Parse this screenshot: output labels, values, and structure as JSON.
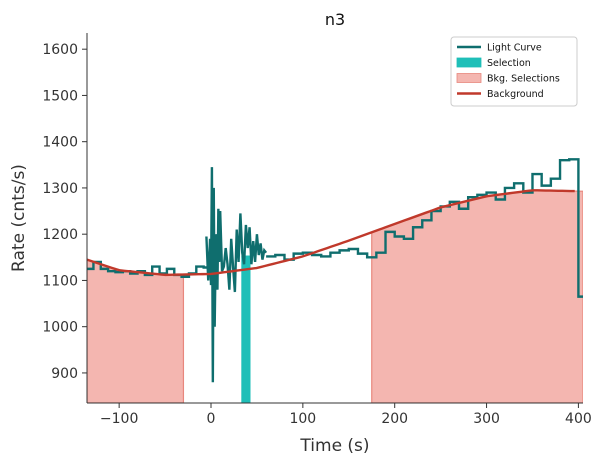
{
  "chart_data": {
    "type": "line",
    "title": "n3",
    "xlabel": "Time (s)",
    "ylabel": "Rate (cnts/s)",
    "xlim": [
      -135,
      405
    ],
    "ylim": [
      835,
      1635
    ],
    "xticks": [
      -100,
      0,
      100,
      200,
      300,
      400
    ],
    "yticks": [
      900,
      1000,
      1100,
      1200,
      1300,
      1400,
      1500,
      1600
    ],
    "xtick_labels": [
      "−100",
      "0",
      "100",
      "200",
      "300",
      "400"
    ],
    "ytick_labels": [
      "900",
      "1000",
      "1100",
      "1200",
      "1300",
      "1400",
      "1500",
      "1600"
    ],
    "legend_position": "top-right",
    "legend": [
      {
        "label": "Light Curve",
        "kind": "line",
        "color": "#0f6e6e"
      },
      {
        "label": "Selection",
        "kind": "patch",
        "color": "#1fbfb8"
      },
      {
        "label": "Bkg. Selections",
        "kind": "patch",
        "color": "#f4b6b0"
      },
      {
        "label": "Background",
        "kind": "line",
        "color": "#c0392b"
      }
    ],
    "colors": {
      "light_curve": "#0f6e6e",
      "selection": "#1fbfb8",
      "bkg_fill": "#f4b6b0",
      "bkg_edge": "#e8877d",
      "background": "#c0392b"
    },
    "series": [
      {
        "name": "Light Curve",
        "kind": "step",
        "x": [
          -135,
          -128,
          -120,
          -112,
          -104,
          -96,
          -88,
          -80,
          -72,
          -64,
          -56,
          -48,
          -40,
          -32,
          -24,
          -16,
          -8,
          0
        ],
        "y": [
          1125,
          1140,
          1125,
          1120,
          1118,
          1120,
          1115,
          1120,
          1112,
          1130,
          1115,
          1125,
          1112,
          1108,
          1115,
          1130,
          1128,
          1130
        ]
      },
      {
        "name": "Light Curve",
        "kind": "line",
        "x": [
          -5,
          -3,
          -1,
          0,
          1,
          2,
          3,
          4,
          5,
          6,
          7,
          8,
          9,
          10,
          12,
          14,
          16,
          18,
          20,
          22,
          24,
          26,
          28,
          30,
          32,
          34,
          36,
          38,
          40,
          42,
          44,
          46,
          48,
          50,
          52,
          54,
          56,
          58,
          60
        ],
        "y": [
          1195,
          1100,
          1190,
          1090,
          1345,
          880,
          1300,
          1000,
          1150,
          1200,
          1080,
          1255,
          1140,
          1250,
          1120,
          1130,
          1170,
          1135,
          1080,
          1190,
          1130,
          1075,
          1210,
          1140,
          1245,
          1160,
          1135,
          1220,
          1170,
          1215,
          1135,
          1185,
          1140,
          1200,
          1155,
          1180,
          1145,
          1165,
          1160
        ]
      },
      {
        "name": "Light Curve",
        "kind": "step",
        "x": [
          60,
          70,
          80,
          90,
          100,
          110,
          120,
          130,
          140,
          150,
          160,
          170,
          180,
          190,
          200,
          210,
          220,
          230,
          240,
          250,
          260,
          270,
          280,
          290,
          300,
          310,
          320,
          330,
          340,
          350,
          360,
          370,
          380,
          390,
          400,
          405
        ],
        "y": [
          1152,
          1155,
          1145,
          1158,
          1160,
          1155,
          1152,
          1160,
          1165,
          1168,
          1158,
          1150,
          1160,
          1205,
          1195,
          1190,
          1215,
          1230,
          1250,
          1260,
          1270,
          1255,
          1280,
          1285,
          1290,
          1275,
          1300,
          1310,
          1290,
          1330,
          1305,
          1320,
          1360,
          1362,
          1065,
          1065
        ]
      },
      {
        "name": "Background",
        "kind": "line",
        "x": [
          -135,
          -100,
          -50,
          0,
          50,
          100,
          150,
          200,
          250,
          300,
          350,
          400
        ],
        "y": [
          1145,
          1122,
          1112,
          1114,
          1127,
          1152,
          1186,
          1222,
          1258,
          1282,
          1295,
          1293
        ]
      }
    ],
    "selections": [
      {
        "x": [
          33,
          43
        ]
      }
    ],
    "bkg_selections": [
      {
        "x": [
          -135,
          -30
        ]
      },
      {
        "x": [
          175,
          405
        ]
      }
    ]
  }
}
